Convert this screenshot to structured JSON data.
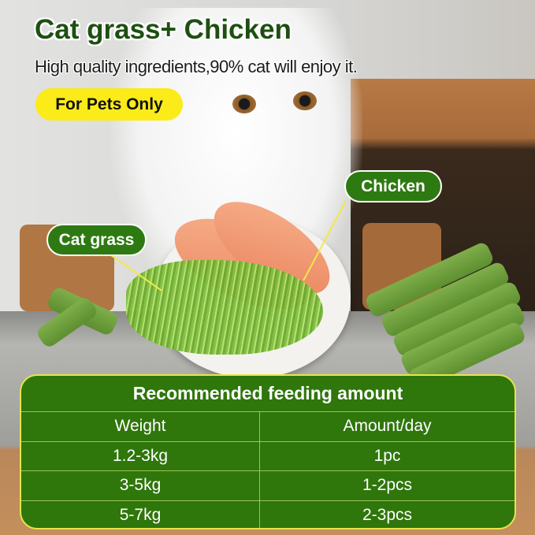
{
  "header": {
    "title": "Cat grass+  Chicken",
    "subtitle": "High quality ingredients,90% cat will enjoy it.",
    "badge": "For Pets Only"
  },
  "labels": {
    "chicken": "Chicken",
    "cat_grass": "Cat grass"
  },
  "feeding_table": {
    "title": "Recommended feeding amount",
    "columns": [
      "Weight",
      "Amount/day"
    ],
    "rows": [
      [
        "1.2-3kg",
        "1pc"
      ],
      [
        "3-5kg",
        "1-2pcs"
      ],
      [
        "5-7kg",
        "2-3pcs"
      ]
    ]
  },
  "colors": {
    "brand_green": "#2f760b",
    "title_green": "#1e4f12",
    "badge_yellow": "#fbeb18"
  }
}
